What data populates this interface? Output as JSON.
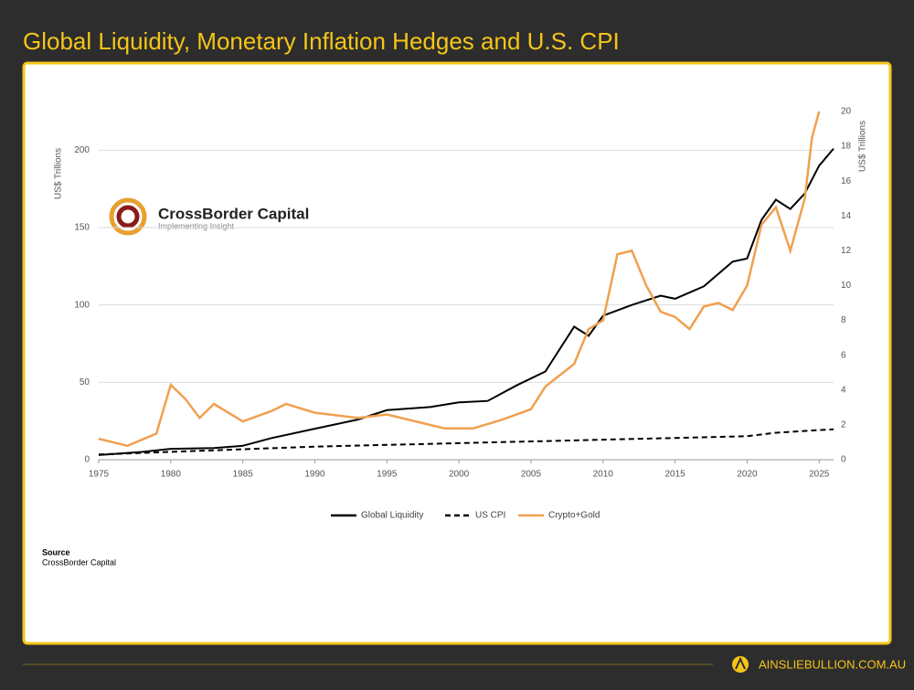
{
  "header": {
    "title": "Global Liquidity, Monetary Inflation Hedges and U.S. CPI"
  },
  "chart_data": {
    "type": "line",
    "y_label": "US$ Trillions",
    "y2_label": "US$ Trillions",
    "xlim": [
      1975,
      2026
    ],
    "xticks": [
      1975,
      1980,
      1985,
      1990,
      1995,
      2000,
      2005,
      2010,
      2015,
      2020,
      2025
    ],
    "ylim": [
      0,
      225
    ],
    "yticks": [
      0,
      50,
      100,
      150,
      200
    ],
    "y2lim": [
      0,
      20
    ],
    "y2ticks": [
      0,
      2,
      4,
      6,
      8,
      10,
      12,
      14,
      16,
      18,
      20
    ],
    "grid": true,
    "legend": "bottom",
    "series": [
      {
        "name": "Global Liquidity",
        "color": "#000000",
        "dash": false,
        "x": [
          1975,
          1978,
          1980,
          1983,
          1985,
          1987,
          1990,
          1993,
          1995,
          1998,
          2000,
          2002,
          2004,
          2006,
          2008,
          2009,
          2010,
          2012,
          2014,
          2015,
          2017,
          2019,
          2020,
          2021,
          2022,
          2023,
          2024,
          2025,
          2026
        ],
        "values": [
          3,
          5,
          7,
          7.5,
          9,
          14,
          20,
          26,
          32,
          34,
          37,
          38,
          48,
          57,
          86,
          80,
          93,
          100,
          106,
          104,
          112,
          128,
          130,
          155,
          168,
          162,
          172,
          190,
          201
        ]
      },
      {
        "name": "US CPI",
        "color": "#000000",
        "dash": true,
        "axis": "y2",
        "x": [
          1975,
          1980,
          1985,
          1990,
          1995,
          2000,
          2005,
          2010,
          2015,
          2020,
          2022,
          2025,
          2026
        ],
        "values": [
          0.3,
          0.45,
          0.6,
          0.75,
          0.85,
          0.95,
          1.05,
          1.15,
          1.25,
          1.35,
          1.55,
          1.7,
          1.75
        ]
      },
      {
        "name": "Crypto+Gold",
        "color": "#f0a050",
        "dash": false,
        "axis": "y2",
        "x": [
          1975,
          1977,
          1979,
          1980,
          1981,
          1982,
          1983,
          1985,
          1987,
          1988,
          1990,
          1993,
          1995,
          1997,
          1999,
          2001,
          2003,
          2005,
          2006,
          2008,
          2009,
          2010,
          2011,
          2012,
          2013,
          2014,
          2015,
          2016,
          2017,
          2018,
          2019,
          2020,
          2021,
          2022,
          2023,
          2024,
          2024.5,
          2025
        ],
        "values": [
          1.2,
          0.8,
          1.5,
          4.3,
          3.5,
          2.4,
          3.2,
          2.2,
          2.8,
          3.2,
          2.7,
          2.4,
          2.6,
          2.2,
          1.8,
          1.8,
          2.3,
          2.9,
          4.2,
          5.5,
          7.5,
          8.0,
          11.8,
          12,
          10,
          8.5,
          8.2,
          7.5,
          8.8,
          9,
          8.6,
          10.0,
          13.5,
          14.5,
          12,
          15,
          18.5,
          20
        ]
      }
    ]
  },
  "logo": {
    "name": "CrossBorder Capital",
    "tagline": "Implementing Insight"
  },
  "source": {
    "heading": "Source",
    "text": "CrossBorder Capital"
  },
  "footer": {
    "site": "AINSLIEBULLION.COM.AU"
  }
}
